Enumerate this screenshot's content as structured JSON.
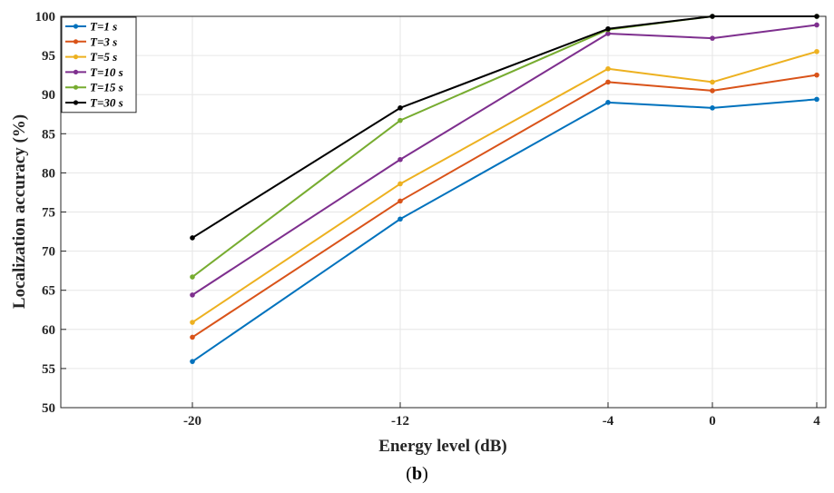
{
  "chart_data": {
    "type": "line",
    "xlabel": "Energy level (dB)",
    "ylabel": "Localization accuracy (%)",
    "x": [
      -20,
      -12,
      -4,
      0,
      4
    ],
    "x_tick_labels": [
      "-20",
      "-12",
      "-4",
      "0",
      "4"
    ],
    "ylim": [
      50,
      100
    ],
    "y_ticks": [
      50,
      55,
      60,
      65,
      70,
      75,
      80,
      85,
      90,
      95,
      100
    ],
    "grid": true,
    "legend_position": "top-left",
    "series": [
      {
        "name": "T=1 s",
        "color": "#0072BD",
        "values": [
          55.9,
          74.1,
          89.0,
          88.3,
          89.4
        ]
      },
      {
        "name": "T=3 s",
        "color": "#D95319",
        "values": [
          59.0,
          76.4,
          91.6,
          90.5,
          92.5
        ]
      },
      {
        "name": "T=5 s",
        "color": "#EDB120",
        "values": [
          60.9,
          78.6,
          93.3,
          91.6,
          95.5
        ]
      },
      {
        "name": "T=10 s",
        "color": "#7E2F8E",
        "values": [
          64.4,
          81.7,
          97.8,
          97.2,
          98.9
        ]
      },
      {
        "name": "T=15 s",
        "color": "#77AC30",
        "values": [
          66.7,
          86.7,
          98.3,
          100.0,
          100.0
        ]
      },
      {
        "name": "T=30 s",
        "color": "#000000",
        "values": [
          71.7,
          88.3,
          98.4,
          100.0,
          100.0
        ]
      }
    ]
  },
  "caption": {
    "open": "(",
    "letter": "b",
    "close": ")"
  }
}
